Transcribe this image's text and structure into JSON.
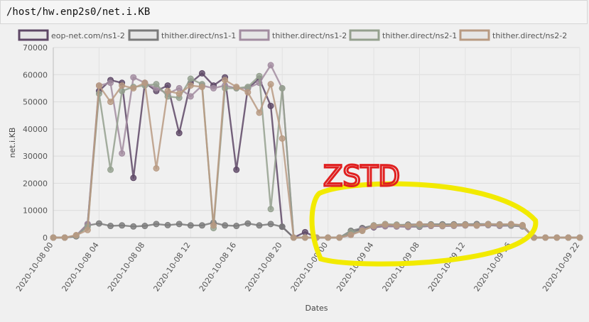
{
  "title": "/host/hw.enp2s0/net.i.KB",
  "chart_data": {
    "type": "line",
    "xlabel": "Dates",
    "ylabel": "net.i.KB",
    "ylim": [
      0,
      70000
    ],
    "yticks": [
      0,
      10000,
      20000,
      30000,
      40000,
      50000,
      60000,
      70000
    ],
    "xlim": [
      0,
      46
    ],
    "xticks": [
      {
        "x": 0,
        "label": "2020-10-08 00"
      },
      {
        "x": 4,
        "label": "2020-10-08 04"
      },
      {
        "x": 8,
        "label": "2020-10-08 08"
      },
      {
        "x": 12,
        "label": "2020-10-08 12"
      },
      {
        "x": 16,
        "label": "2020-10-08 16"
      },
      {
        "x": 20,
        "label": "2020-10-08 20"
      },
      {
        "x": 24,
        "label": "2020-10-09 00"
      },
      {
        "x": 28,
        "label": "2020-10-09 04"
      },
      {
        "x": 32,
        "label": "2020-10-09 08"
      },
      {
        "x": 36,
        "label": "2020-10-09 12"
      },
      {
        "x": 40,
        "label": "2020-10-09 16"
      },
      {
        "x": 46,
        "label": "2020-10-09 22"
      }
    ],
    "grid": true,
    "legend_position": "top",
    "series": [
      {
        "name": "eop-net.com/ns1-2",
        "color": "#5e4866",
        "x": [
          0,
          1,
          2,
          3,
          4,
          5,
          6,
          7,
          8,
          9,
          10,
          11,
          12,
          13,
          14,
          15,
          16,
          17,
          18,
          19,
          20,
          21,
          22,
          23,
          24,
          25,
          26,
          27,
          28,
          29,
          30,
          31,
          32,
          33,
          34,
          35,
          36,
          37,
          38,
          39,
          40,
          41,
          42,
          43,
          44,
          45,
          46
        ],
        "values": [
          0,
          0,
          500,
          5000,
          54000,
          58000,
          57000,
          22000,
          57000,
          54000,
          56000,
          38500,
          57000,
          60500,
          56000,
          59000,
          25000,
          55000,
          58500,
          48500,
          4000,
          0,
          2000,
          0,
          0,
          0,
          1500,
          3500,
          3800,
          4200,
          4100,
          4100,
          4000,
          4300,
          4300,
          4400,
          4500,
          4600,
          4600,
          4400,
          4400,
          4100,
          0,
          0,
          0,
          0,
          0
        ]
      },
      {
        "name": "thither.direct/ns1-1",
        "color": "#7a7a7a",
        "x": [
          0,
          1,
          2,
          3,
          4,
          5,
          6,
          7,
          8,
          9,
          10,
          11,
          12,
          13,
          14,
          15,
          16,
          17,
          18,
          19,
          20,
          21,
          22,
          23,
          24,
          25,
          26,
          27,
          28,
          29,
          30,
          31,
          32,
          33,
          34,
          35,
          36,
          37,
          38,
          39,
          40,
          41,
          42,
          43,
          44,
          45,
          46
        ],
        "values": [
          0,
          0,
          500,
          4500,
          5200,
          4300,
          4500,
          4100,
          4300,
          5000,
          4600,
          5000,
          4500,
          4500,
          5500,
          4500,
          4300,
          5200,
          4500,
          5000,
          4000,
          0,
          0,
          0,
          0,
          0,
          2500,
          3500,
          4500,
          4700,
          4600,
          4800,
          4900,
          4900,
          4900,
          4900,
          4900,
          5000,
          5000,
          4900,
          4800,
          4500,
          0,
          0,
          0,
          0,
          0
        ]
      },
      {
        "name": "thither.direct/ns1-2",
        "color": "#a28ca0",
        "x": [
          0,
          1,
          2,
          3,
          4,
          5,
          6,
          7,
          8,
          9,
          10,
          11,
          12,
          13,
          14,
          15,
          16,
          17,
          18,
          19,
          20,
          21,
          22,
          23,
          24,
          25,
          26,
          27,
          28,
          29,
          30,
          31,
          32,
          33,
          34,
          35,
          36,
          37,
          38,
          39,
          40,
          41,
          42,
          43,
          44,
          45,
          46
        ],
        "values": [
          0,
          0,
          800,
          5000,
          56000,
          57000,
          31000,
          59000,
          57000,
          55000,
          53000,
          55000,
          52000,
          56000,
          55000,
          56000,
          55000,
          55000,
          57000,
          63500,
          55000,
          0,
          0,
          0,
          0,
          0,
          1000,
          3000,
          4000,
          4200,
          4100,
          3900,
          4100,
          4300,
          4200,
          4300,
          4500,
          4400,
          4600,
          4300,
          4400,
          4100,
          0,
          0,
          0,
          0,
          0
        ]
      },
      {
        "name": "thither.direct/ns2-1",
        "color": "#94a08e",
        "x": [
          0,
          1,
          2,
          3,
          4,
          5,
          6,
          7,
          8,
          9,
          10,
          11,
          12,
          13,
          14,
          15,
          16,
          17,
          18,
          19,
          20,
          21,
          22,
          23,
          24,
          25,
          26,
          27,
          28,
          29,
          30,
          31,
          32,
          33,
          34,
          35,
          36,
          37,
          38,
          39,
          40,
          41,
          42,
          43,
          44,
          45,
          46
        ],
        "values": [
          0,
          0,
          700,
          4000,
          53000,
          25000,
          54000,
          55500,
          56000,
          56500,
          52000,
          51500,
          58500,
          56500,
          3500,
          55000,
          55000,
          55500,
          59500,
          10500,
          55000,
          0,
          0,
          0,
          0,
          0,
          2000,
          2500,
          4500,
          5000,
          4800,
          4500,
          4300,
          4700,
          4500,
          4600,
          4700,
          4600,
          4800,
          4700,
          4600,
          4300,
          0,
          0,
          0,
          0,
          0
        ]
      },
      {
        "name": "thither.direct/ns2-2",
        "color": "#b89a82",
        "x": [
          0,
          1,
          2,
          3,
          4,
          5,
          6,
          7,
          8,
          9,
          10,
          11,
          12,
          13,
          14,
          15,
          16,
          17,
          18,
          19,
          20,
          21,
          22,
          23,
          24,
          25,
          26,
          27,
          28,
          29,
          30,
          31,
          32,
          33,
          34,
          35,
          36,
          37,
          38,
          39,
          40,
          41,
          42,
          43,
          44,
          45,
          46
        ],
        "values": [
          0,
          0,
          900,
          2800,
          56000,
          50000,
          56000,
          55000,
          57000,
          25500,
          54000,
          53000,
          56000,
          55500,
          4500,
          58000,
          55500,
          53500,
          46000,
          56500,
          36500,
          0,
          0,
          0,
          0,
          0,
          1000,
          2500,
          4300,
          4800,
          4500,
          4400,
          5000,
          4600,
          4400,
          4600,
          4700,
          4500,
          4900,
          4800,
          5000,
          4600,
          0,
          0,
          0,
          0,
          0
        ]
      }
    ]
  },
  "annotation": {
    "text": "ZSTD",
    "highlight_color": "#f2ea00",
    "text_color": "#e02020"
  }
}
